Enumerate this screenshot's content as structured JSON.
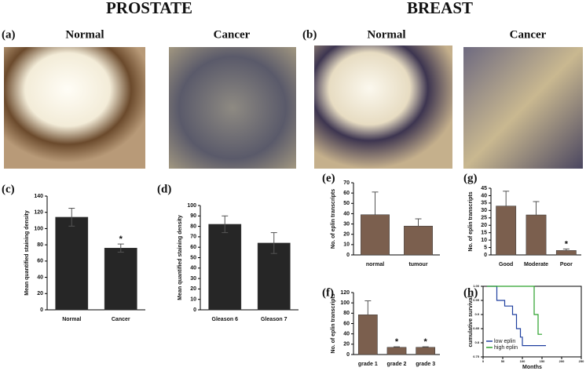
{
  "header": {
    "left": "PROSTATE",
    "right": "BREAST"
  },
  "panels": {
    "a": "(a)",
    "b": "(b)",
    "c": "(c)",
    "d": "(d)",
    "e": "(e)",
    "f": "(f)",
    "g": "(g)",
    "h": "(h)"
  },
  "images": {
    "a_left": "Normal",
    "a_right": "Cancer",
    "b_left": "Normal",
    "b_right": "Cancer"
  },
  "chart_data": [
    {
      "type": "bar",
      "ylabel": "Mean quantified staining density",
      "categories": [
        "Normal",
        "Cancer"
      ],
      "values": [
        114,
        76
      ],
      "errors": [
        11,
        5
      ],
      "error_bars": "both",
      "annotations": [
        null,
        "*"
      ],
      "color": "#262626",
      "ylim": [
        0,
        140
      ],
      "yticks": [
        0,
        20,
        40,
        60,
        80,
        100,
        120,
        140
      ]
    },
    {
      "type": "bar",
      "ylabel": "Mean quantified staining density",
      "categories": [
        "Gleason 6",
        "Gleason 7"
      ],
      "values": [
        82,
        64
      ],
      "errors": [
        8,
        10
      ],
      "error_bars": "both",
      "annotations": [
        null,
        null
      ],
      "color": "#262626",
      "ylim": [
        0,
        100
      ],
      "yticks": [
        0,
        10,
        20,
        30,
        40,
        50,
        60,
        70,
        80,
        90,
        100
      ]
    },
    {
      "type": "bar",
      "ylabel": "No. of eplin transcripts",
      "categories": [
        "normal",
        "tumour"
      ],
      "values": [
        39,
        28
      ],
      "errors": [
        22,
        7
      ],
      "error_bars": "upper",
      "annotations": [
        null,
        null
      ],
      "color": "#7b5f4e",
      "ylim": [
        0,
        70
      ],
      "yticks": [
        0,
        10,
        20,
        30,
        40,
        50,
        60,
        70
      ]
    },
    {
      "type": "bar",
      "ylabel": "No. of eplin transcripts",
      "categories": [
        "grade 1",
        "grade 2",
        "grade 3"
      ],
      "values": [
        77,
        14,
        14
      ],
      "errors": [
        27,
        1,
        1
      ],
      "error_bars": "upper",
      "annotations": [
        null,
        "*",
        "*"
      ],
      "color": "#7b5f4e",
      "ylim": [
        0,
        120
      ],
      "yticks": [
        0,
        20,
        40,
        60,
        80,
        100,
        120
      ]
    },
    {
      "type": "bar",
      "ylabel": "No. of eplin transcripts",
      "categories": [
        "Good",
        "Moderate",
        "Poor"
      ],
      "values": [
        33,
        27,
        3
      ],
      "errors": [
        10,
        9,
        1
      ],
      "error_bars": "upper",
      "annotations": [
        null,
        null,
        "*"
      ],
      "color": "#7b5f4e",
      "ylim": [
        0,
        45
      ],
      "yticks": [
        0,
        5,
        10,
        15,
        20,
        25,
        30,
        35,
        40,
        45
      ]
    },
    {
      "type": "step",
      "xlabel": "Months",
      "ylabel": "cumulative survival",
      "xlim": [
        0,
        250
      ],
      "xticks": [
        0,
        50,
        100,
        150,
        200,
        250
      ],
      "ylim": [
        0.75,
        1.0
      ],
      "yticks": [
        0.75,
        0.8,
        0.85,
        0.9,
        0.95,
        {
          "value": 1,
          "label": "1.00"
        }
      ],
      "legend": "lower left",
      "series": [
        {
          "name": "low eplin",
          "color": "#1f3f9f",
          "x": [
            10,
            35,
            55,
            75,
            85,
            95,
            100,
            160
          ],
          "values": [
            1.0,
            0.95,
            0.93,
            0.9,
            0.85,
            0.82,
            0.79,
            0.79
          ]
        },
        {
          "name": "high eplin",
          "color": "#2aa02a",
          "x": [
            10,
            130,
            140,
            150
          ],
          "values": [
            1.0,
            0.9,
            0.83,
            0.83
          ]
        }
      ]
    }
  ]
}
